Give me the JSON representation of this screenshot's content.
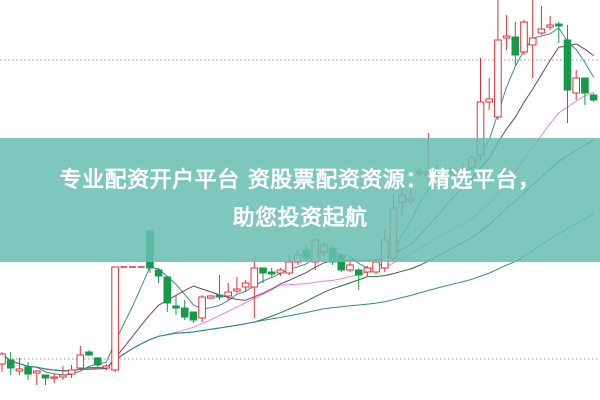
{
  "banner": {
    "line1": "专业配资开户平台 资股票配资资源：精选平台，",
    "line2": "助您投资起航"
  },
  "chart_data": {
    "type": "candlestick",
    "title": "",
    "xlabel": "",
    "ylabel": "",
    "ylim": [
      0,
      40
    ],
    "grid": "horizontal dotted",
    "gridlines": [
      4.1,
      14,
      24,
      34
    ],
    "colors": {
      "up": "#e0313b",
      "down": "#16994a",
      "limit_dash": "#e0313b",
      "ma_lines": [
        "#3f8f8c",
        "#7b3c6e",
        "#ea85dc",
        "#2f6e2f",
        "#2c8c95"
      ],
      "grid": "#9a9a9a"
    },
    "ohlc": [
      [
        3.6,
        4.8,
        2.8,
        4.6
      ],
      [
        4.0,
        4.8,
        2.5,
        3.2
      ],
      [
        2.9,
        4.2,
        2.5,
        3.1
      ],
      [
        3.3,
        3.8,
        2.0,
        2.6
      ],
      [
        2.7,
        3.0,
        1.5,
        2.9
      ],
      [
        2.5,
        2.5,
        1.5,
        2.2
      ],
      [
        2.2,
        2.6,
        1.7,
        2.3
      ],
      [
        2.3,
        3.4,
        2.0,
        2.5
      ],
      [
        2.6,
        3.5,
        2.2,
        3.0
      ],
      [
        3.2,
        5.4,
        3.0,
        4.5
      ],
      [
        4.8,
        5.0,
        4.4,
        4.5
      ],
      [
        4.2,
        4.3,
        3.2,
        3.5
      ],
      [
        3.2,
        3.6,
        3.0,
        3.4
      ],
      [
        3.0,
        13.3,
        2.8,
        13.3
      ],
      [
        13.3,
        13.3,
        13.3,
        13.3
      ],
      [
        13.3,
        13.3,
        13.3,
        13.3
      ],
      [
        13.3,
        13.3,
        13.3,
        13.3
      ],
      [
        16.9,
        17.0,
        12.7,
        13.2
      ],
      [
        13.0,
        13.2,
        11.7,
        12.4
      ],
      [
        12.3,
        12.3,
        8.8,
        9.7
      ],
      [
        9.4,
        10.5,
        8.5,
        9.2
      ],
      [
        9.2,
        10.0,
        8.0,
        8.3
      ],
      [
        8.8,
        8.8,
        7.7,
        8.0
      ],
      [
        8.2,
        10.5,
        7.8,
        10.3
      ],
      [
        10.2,
        10.5,
        10.1,
        10.4
      ],
      [
        10.5,
        12.5,
        10.0,
        10.3
      ],
      [
        10.4,
        11.7,
        10.0,
        10.8
      ],
      [
        10.9,
        12.3,
        10.7,
        11.1
      ],
      [
        11.3,
        12.0,
        10.8,
        11.7
      ],
      [
        11.3,
        14.3,
        8.2,
        13.2
      ],
      [
        13.2,
        13.2,
        11.7,
        12.7
      ],
      [
        12.8,
        13.2,
        12.2,
        12.6
      ],
      [
        12.7,
        13.2,
        12.4,
        13.0
      ],
      [
        12.7,
        14.5,
        12.5,
        13.8
      ],
      [
        13.8,
        15.0,
        13.5,
        14.5
      ],
      [
        15.0,
        15.5,
        13.8,
        14.2
      ],
      [
        13.8,
        16.2,
        13.0,
        16.0
      ],
      [
        14.8,
        15.8,
        14.4,
        15.5
      ],
      [
        15.2,
        15.6,
        13.5,
        13.8
      ],
      [
        14.5,
        14.7,
        12.8,
        13.0
      ],
      [
        13.0,
        13.8,
        12.8,
        13.5
      ],
      [
        13.0,
        13.2,
        11.0,
        12.5
      ],
      [
        12.8,
        13.4,
        12.4,
        13.2
      ],
      [
        12.8,
        14.2,
        12.6,
        13.8
      ],
      [
        13.2,
        17.0,
        12.8,
        16.0
      ],
      [
        14.2,
        20.5,
        13.8,
        19.2
      ],
      [
        19.8,
        22.5,
        18.5,
        20.5
      ],
      [
        19.9,
        21.0,
        19.5,
        20.1
      ],
      [
        22.6,
        23.3,
        22.4,
        22.8
      ],
      [
        22.5,
        26.7,
        21.5,
        22.8
      ],
      [
        22.7,
        23.5,
        22.2,
        22.9
      ],
      [
        22.7,
        23.2,
        22.4,
        22.9
      ],
      [
        22.7,
        23.2,
        22.4,
        22.9
      ],
      [
        22.9,
        23.7,
        22.5,
        23.1
      ],
      [
        23.3,
        24.5,
        23.0,
        24.2
      ],
      [
        24.5,
        34.2,
        24.0,
        29.8
      ],
      [
        29.8,
        32.2,
        29.0,
        30.1
      ],
      [
        28.3,
        40.0,
        28.0,
        36.0
      ],
      [
        36.2,
        38.5,
        35.0,
        36.4
      ],
      [
        36.3,
        37.8,
        33.5,
        34.5
      ],
      [
        34.8,
        38.0,
        34.5,
        37.8
      ],
      [
        35.5,
        40.0,
        32.2,
        36.2
      ],
      [
        36.7,
        39.4,
        36.5,
        37.1
      ],
      [
        37.3,
        38.4,
        37.0,
        37.5
      ],
      [
        37.6,
        37.8,
        35.7,
        37.4
      ],
      [
        36.0,
        37.5,
        27.7,
        31.0
      ],
      [
        30.7,
        33.0,
        30.0,
        32.2
      ],
      [
        32.2,
        32.2,
        29.5,
        30.7
      ],
      [
        30.5,
        30.7,
        29.8,
        30.0
      ]
    ],
    "limit_dash_indices": [
      14,
      15,
      16
    ]
  }
}
